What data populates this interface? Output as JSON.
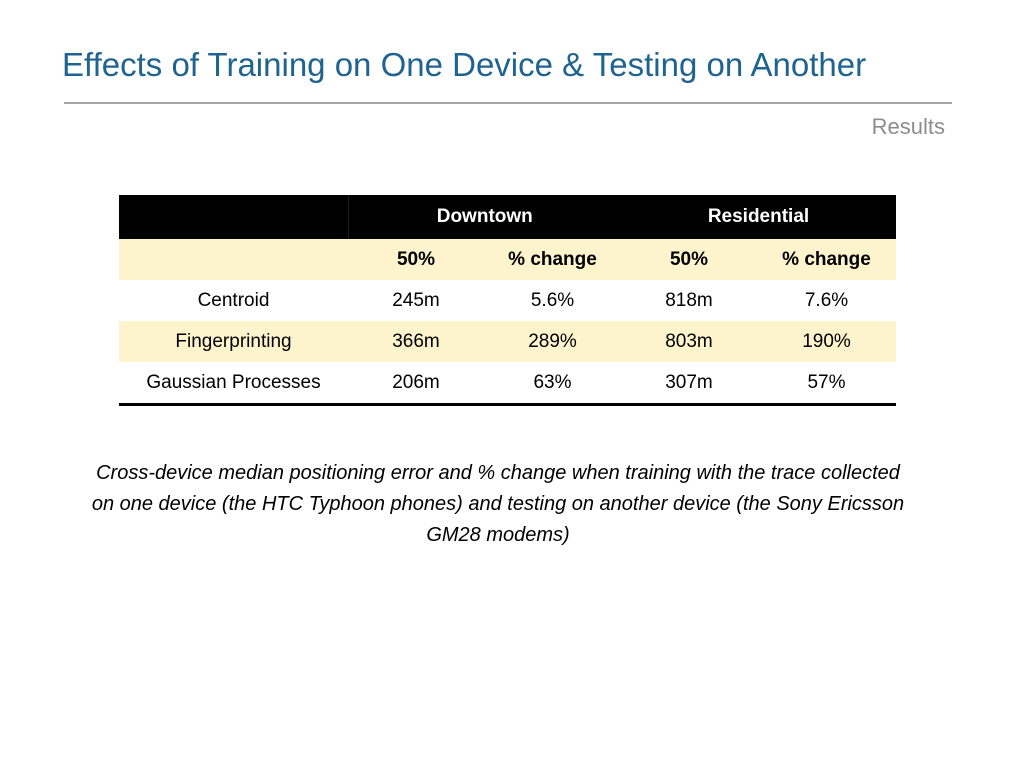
{
  "slide": {
    "title": "Effects of Training on One Device & Testing on Another",
    "section": "Results"
  },
  "table": {
    "groups": [
      "Downtown",
      "Residential"
    ],
    "subheaders": [
      "50%",
      "% change",
      "50%",
      "% change"
    ],
    "rows": [
      {
        "label": "Centroid",
        "values": [
          "245m",
          "5.6%",
          "818m",
          "7.6%"
        ]
      },
      {
        "label": "Fingerprinting",
        "values": [
          "366m",
          "289%",
          "803m",
          "190%"
        ]
      },
      {
        "label": "Gaussian Processes",
        "values": [
          "206m",
          "63%",
          "307m",
          "57%"
        ]
      }
    ]
  },
  "caption": "Cross-device median positioning error and % change when training with the trace collected on one device (the HTC Typhoon phones) and testing on another device (the Sony Ericsson GM28 modems)",
  "colors": {
    "title": "#1f6391",
    "header_bg": "#000000",
    "header_text": "#ffffff",
    "band": "#fdf3cc",
    "rule": "#a6a6a6",
    "section_label": "#8c8c8c"
  }
}
